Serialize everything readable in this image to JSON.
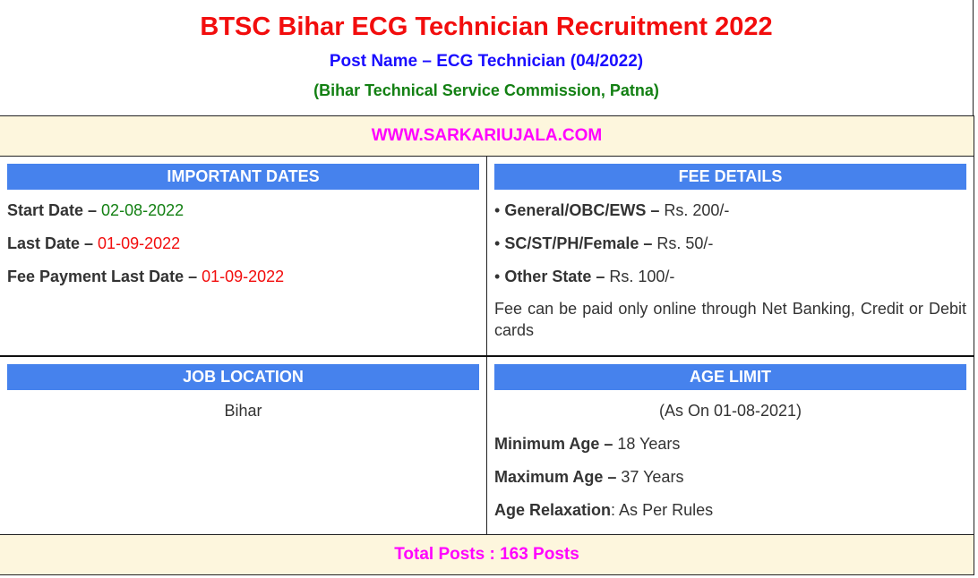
{
  "header": {
    "title": "BTSC Bihar ECG Technician Recruitment 2022",
    "post_name": "Post Name – ECG Technician (04/2022)",
    "organization": "(Bihar Technical Service Commission, Patna)"
  },
  "website": "WWW.SARKARIUJALA.COM",
  "important_dates": {
    "heading": "IMPORTANT DATES",
    "items": [
      {
        "label": "Start Date – ",
        "value": "02-08-2022"
      },
      {
        "label": "Last Date – ",
        "value": "01-09-2022"
      },
      {
        "label": "Fee Payment Last Date – ",
        "value": "01-09-2022"
      }
    ]
  },
  "fee_details": {
    "heading": "FEE DETAILS",
    "items": [
      {
        "label": "General/OBC/EWS – ",
        "value": "Rs. 200/-"
      },
      {
        "label": "SC/ST/PH/Female – ",
        "value": "Rs. 50/-"
      },
      {
        "label": "Other State – ",
        "value": "Rs. 100/-"
      }
    ],
    "note": "Fee can be paid only online through Net Banking, Credit or Debit cards"
  },
  "job_location": {
    "heading": "JOB LOCATION",
    "value": "Bihar"
  },
  "age_limit": {
    "heading": "AGE LIMIT",
    "as_on": "(As On 01-08-2021)",
    "items": [
      {
        "label": "Minimum Age – ",
        "value": "18 Years"
      },
      {
        "label": "Maximum Age – ",
        "value": "37 Years"
      },
      {
        "label": "Age Relaxation",
        "value": ": As Per Rules"
      }
    ]
  },
  "total_posts": "Total Posts : 163 Posts",
  "colors": {
    "title": "#f20d0d",
    "post": "#1a0dff",
    "org": "#138013",
    "accent": "#ff00ff",
    "header_bg": "#4682ed",
    "band_bg": "#fdf6dd"
  }
}
